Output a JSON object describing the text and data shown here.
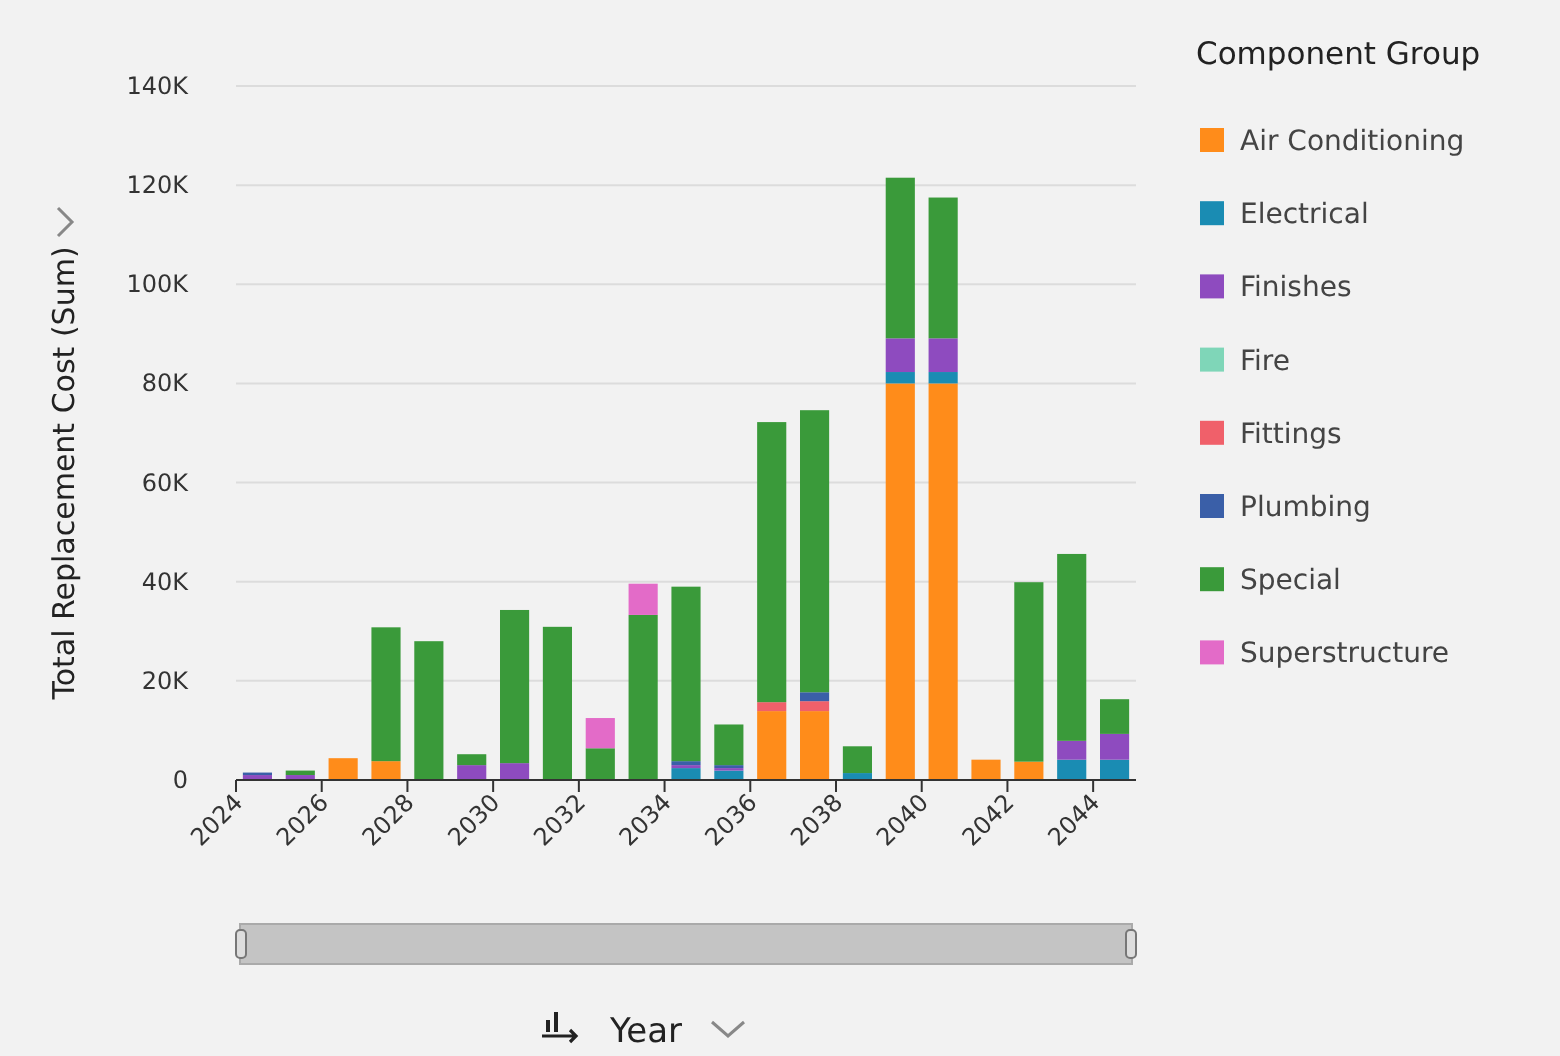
{
  "chart_data": {
    "type": "bar",
    "stacked": true,
    "xlabel": "Year",
    "ylabel": "Total Replacement Cost (Sum)",
    "legend_title": "Component Group",
    "legend": "right",
    "grid": "y",
    "x": [
      2024.5,
      2025.5,
      2026.5,
      2027.5,
      2028.5,
      2029.5,
      2030.5,
      2031.5,
      2032.5,
      2033.5,
      2034.5,
      2035.5,
      2036.5,
      2037.5,
      2038.5,
      2039.5,
      2040.5,
      2041.5,
      2042.5,
      2043.5,
      2044.5
    ],
    "xlim": [
      2024,
      2045
    ],
    "xticks": [
      2024,
      2026,
      2028,
      2030,
      2032,
      2034,
      2036,
      2038,
      2040,
      2042,
      2044
    ],
    "ylim": [
      0,
      140000
    ],
    "yticks": [
      {
        "value": 0,
        "label": "0"
      },
      {
        "value": 20000,
        "label": "20K"
      },
      {
        "value": 40000,
        "label": "40K"
      },
      {
        "value": 60000,
        "label": "60K"
      },
      {
        "value": 80000,
        "label": "80K"
      },
      {
        "value": 100000,
        "label": "100K"
      },
      {
        "value": 120000,
        "label": "120K"
      },
      {
        "value": 140000,
        "label": "140K"
      }
    ],
    "series": [
      {
        "name": "Air Conditioning",
        "color": "#ff8c1a",
        "values": [
          null,
          null,
          4400,
          3800,
          null,
          null,
          null,
          null,
          null,
          null,
          null,
          null,
          13900,
          13900,
          null,
          80000,
          80000,
          4100,
          3700,
          null,
          null
        ]
      },
      {
        "name": "Electrical",
        "color": "#1a8cb3",
        "values": [
          null,
          null,
          null,
          null,
          null,
          null,
          null,
          null,
          null,
          null,
          2400,
          1900,
          null,
          null,
          1400,
          2300,
          2300,
          null,
          null,
          4100,
          4100
        ]
      },
      {
        "name": "Finishes",
        "color": "#8e4bbf",
        "values": [
          1000,
          1000,
          null,
          null,
          null,
          3000,
          3400,
          null,
          null,
          null,
          600,
          500,
          null,
          null,
          null,
          6800,
          6800,
          null,
          null,
          3800,
          5200
        ]
      },
      {
        "name": "Fire",
        "color": "#7fd6b8",
        "values": [
          null,
          null,
          null,
          null,
          null,
          null,
          null,
          null,
          null,
          null,
          null,
          null,
          null,
          null,
          null,
          null,
          null,
          null,
          null,
          null,
          null
        ]
      },
      {
        "name": "Fittings",
        "color": "#f0606a",
        "values": [
          null,
          null,
          null,
          null,
          null,
          null,
          null,
          null,
          null,
          null,
          null,
          null,
          1800,
          2000,
          null,
          null,
          null,
          null,
          null,
          null,
          null
        ]
      },
      {
        "name": "Plumbing",
        "color": "#3a5fa8",
        "values": [
          500,
          null,
          null,
          null,
          null,
          null,
          null,
          null,
          null,
          null,
          800,
          600,
          null,
          1800,
          null,
          null,
          null,
          null,
          null,
          null,
          null
        ]
      },
      {
        "name": "Special",
        "color": "#3a9a3a",
        "values": [
          null,
          900,
          null,
          27000,
          28000,
          2200,
          30900,
          30900,
          6400,
          33300,
          35200,
          8200,
          56500,
          56900,
          5400,
          32400,
          28400,
          null,
          36200,
          37700,
          7000
        ]
      },
      {
        "name": "Superstructure",
        "color": "#e36bc8",
        "values": [
          null,
          null,
          null,
          null,
          null,
          null,
          null,
          null,
          6100,
          6300,
          null,
          null,
          null,
          null,
          null,
          null,
          null,
          null,
          null,
          null,
          null
        ]
      }
    ]
  }
}
